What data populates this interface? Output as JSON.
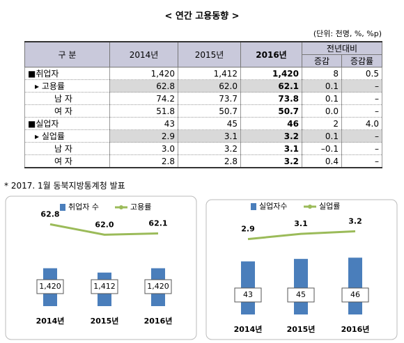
{
  "title": "< 연간 고용동향 >",
  "unit": "(단위: 천명, %, %p)",
  "table": {
    "header": [
      "구 분",
      "2014년",
      "2015년",
      "2016년",
      "전년대비"
    ],
    "subheader": [
      "증감",
      "증감률"
    ],
    "rows": [
      {
        "label": "■취업자",
        "cells": [
          "1,420",
          "1,412",
          "1,420",
          "8",
          "0.5"
        ]
      },
      {
        "label": "▸ 고용률",
        "cells": [
          "62.8",
          "62.0",
          "62.1",
          "0.1",
          "–"
        ]
      },
      {
        "label": "남 자",
        "cells": [
          "74.2",
          "73.7",
          "73.8",
          "0.1",
          "–"
        ]
      },
      {
        "label": "여 자",
        "cells": [
          "51.8",
          "50.7",
          "50.7",
          "0.0",
          "–"
        ]
      },
      {
        "label": "■실업자",
        "cells": [
          "43",
          "45",
          "46",
          "2",
          "4.0"
        ]
      },
      {
        "label": "▸ 실업률",
        "cells": [
          "2.9",
          "3.1",
          "3.2",
          "0.1",
          "–"
        ]
      },
      {
        "label": "남 자",
        "cells": [
          "3.0",
          "3.2",
          "3.1",
          "–0.1",
          "–"
        ]
      },
      {
        "label": "여 자",
        "cells": [
          "2.8",
          "2.8",
          "3.2",
          "0.4",
          "–"
        ]
      }
    ]
  },
  "note": "* 2017. 1월 동북지방통계청 발표",
  "chart_data": [
    {
      "type": "bar",
      "categories": [
        "2014년",
        "2015년",
        "2016년"
      ],
      "ylim": [
        1350,
        1530
      ],
      "y2lim": [
        56.5,
        64
      ],
      "series": [
        {
          "name": "취업자 수",
          "color": "#4a7ebb",
          "values": [
            1420,
            1412,
            1420
          ],
          "value_labels": [
            "1,420",
            "1,412",
            "1,420"
          ]
        },
        {
          "name": "고용률",
          "color": "#9bbb59",
          "type": "line",
          "axis": "y2",
          "values": [
            62.8,
            62.0,
            62.1
          ],
          "value_labels": [
            "62.8",
            "62.0",
            "62.1"
          ]
        }
      ]
    },
    {
      "type": "bar",
      "categories": [
        "2014년",
        "2015년",
        "2016년"
      ],
      "ylim": [
        0,
        80
      ],
      "y2lim": [
        0,
        3.8
      ],
      "series": [
        {
          "name": "실업자수",
          "color": "#4a7ebb",
          "values": [
            43,
            45,
            46
          ]
        },
        {
          "name": "실업률",
          "color": "#9bbb59",
          "type": "line",
          "axis": "y2",
          "values": [
            2.9,
            3.1,
            3.2
          ]
        }
      ]
    }
  ]
}
